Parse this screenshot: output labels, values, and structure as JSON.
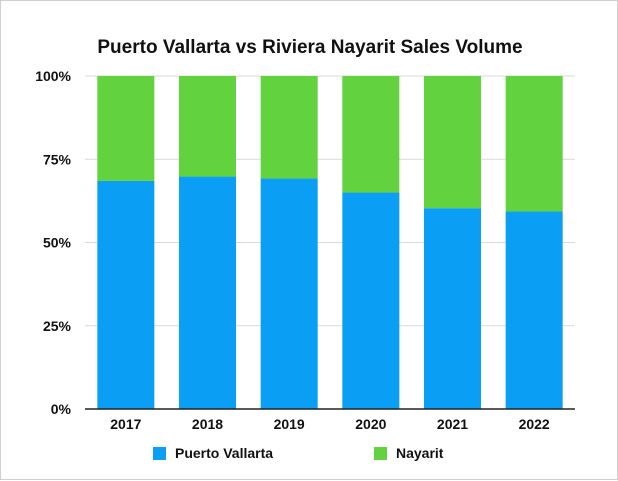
{
  "chart_data": {
    "type": "bar",
    "stacked": true,
    "title": "Puerto Vallarta vs Riviera Nayarit Sales Volume",
    "categories": [
      "2017",
      "2018",
      "2019",
      "2020",
      "2021",
      "2022"
    ],
    "series": [
      {
        "name": "Puerto Vallarta",
        "color": "#0a9ff5",
        "values": [
          68.5,
          69.8,
          69.2,
          65.0,
          60.3,
          59.3
        ]
      },
      {
        "name": "Nayarit",
        "color": "#62d23f",
        "values": [
          31.5,
          30.2,
          30.8,
          35.0,
          39.7,
          40.7
        ]
      }
    ],
    "ylim": [
      0,
      100
    ],
    "yticks": [
      "0%",
      "25%",
      "50%",
      "75%",
      "100%"
    ],
    "grid": true,
    "legend_position": "bottom",
    "xlabel": "",
    "ylabel": ""
  }
}
